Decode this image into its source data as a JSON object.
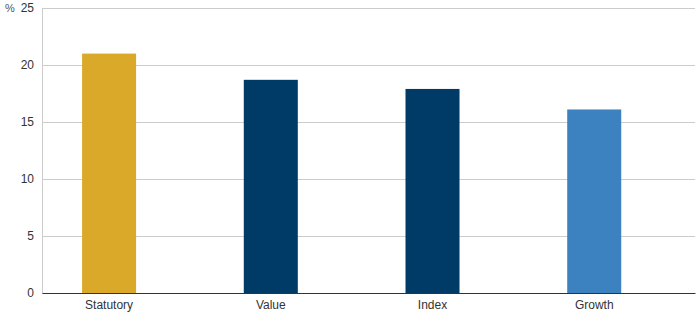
{
  "chart_data": {
    "type": "bar",
    "y_label": "%",
    "categories": [
      "Statutory",
      "Value",
      "Index",
      "Growth"
    ],
    "values": [
      21.0,
      18.7,
      17.9,
      16.1
    ],
    "colors": [
      "#dba92a",
      "#003a66",
      "#003a66",
      "#3c82c0"
    ],
    "ylim": [
      0,
      25
    ],
    "yticks": [
      0,
      5,
      10,
      15,
      20,
      25
    ],
    "grid": true
  }
}
